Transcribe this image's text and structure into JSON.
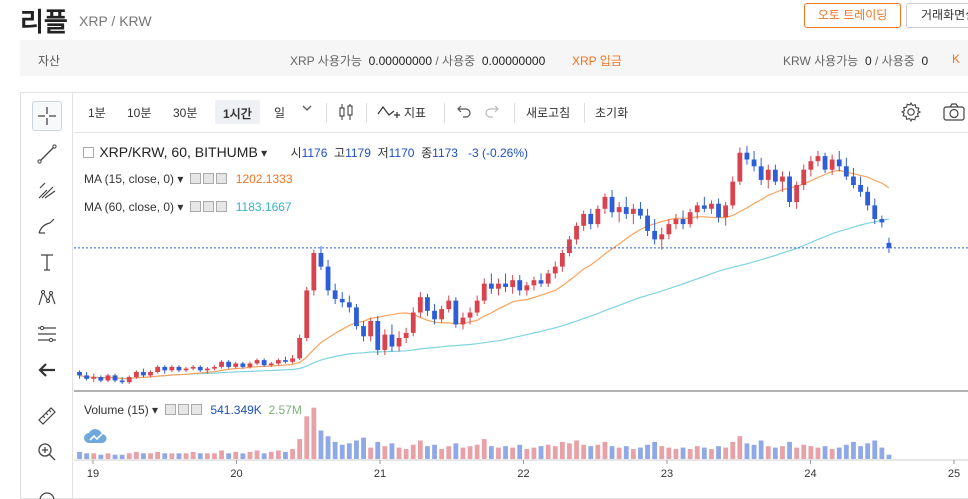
{
  "header": {
    "coin_name": "리플",
    "pair": "XRP / KRW",
    "auto_trading_button": "오토 트레이딩",
    "screen_button": "거래화면설"
  },
  "assets": {
    "label": "자산",
    "xrp_available_label": "XRP 사용가능",
    "xrp_available": "0.00000000",
    "xrp_in_use_label": "/ 사용중",
    "xrp_in_use": "0.00000000",
    "xrp_deposit": "XRP 입금",
    "krw_available_label": "KRW 사용가능",
    "krw_available": "0",
    "krw_in_use_label": "/ 사용중",
    "krw_in_use": "0",
    "krw_deposit": "K"
  },
  "toolbar": {
    "interval_1m": "1분",
    "interval_10m": "10분",
    "interval_30m": "30분",
    "interval_1h": "1시간",
    "interval_day": "일",
    "indicators": "지표",
    "refresh": "새로고침",
    "reset": "초기화"
  },
  "tools": [
    "crosshair-icon",
    "trend-line-icon",
    "pitchfork-icon",
    "brush-icon",
    "text-icon",
    "pattern-icon",
    "fib-icon",
    "back-arrow-icon",
    "ruler-icon",
    "zoom-in-icon"
  ],
  "legend": {
    "symbol": "XRP/KRW, 60, BITHUMB",
    "open_label": "시",
    "open": "1176",
    "high_label": "고",
    "high": "1179",
    "low_label": "저",
    "low": "1170",
    "close_label": "종",
    "close": "1173",
    "change": "-3 (-0.26%)",
    "ma15_label": "MA (15, close, 0)",
    "ma15_value": "1202.1333",
    "ma60_label": "MA (60, close, 0)",
    "ma60_value": "1183.1667",
    "volume_label": "Volume (15)",
    "volume_value": "541.349K",
    "volume_ma_value": "2.57M"
  },
  "colors": {
    "up": "#d9434e",
    "down": "#2d5ed8",
    "ma15": "#f7a35c",
    "ma60": "#7fd4e0",
    "accent": "#f37321"
  },
  "chart_data": {
    "type": "candlestick",
    "x_ticks": [
      "19",
      "20",
      "21",
      "22",
      "23",
      "24",
      "25"
    ],
    "price_range": [
      1090,
      1240
    ],
    "last_price": 1173,
    "candles": [
      [
        1100,
        1101,
        1096,
        1098
      ],
      [
        1098,
        1100,
        1095,
        1096
      ],
      [
        1096,
        1099,
        1094,
        1097
      ],
      [
        1097,
        1098,
        1094,
        1095
      ],
      [
        1095,
        1099,
        1094,
        1098
      ],
      [
        1098,
        1099,
        1094,
        1095
      ],
      [
        1095,
        1097,
        1093,
        1094
      ],
      [
        1094,
        1098,
        1093,
        1097
      ],
      [
        1097,
        1101,
        1096,
        1100
      ],
      [
        1100,
        1102,
        1097,
        1098
      ],
      [
        1098,
        1101,
        1097,
        1100
      ],
      [
        1100,
        1104,
        1099,
        1103
      ],
      [
        1103,
        1104,
        1099,
        1101
      ],
      [
        1101,
        1104,
        1100,
        1103
      ],
      [
        1103,
        1104,
        1100,
        1101
      ],
      [
        1101,
        1103,
        1100,
        1102
      ],
      [
        1102,
        1104,
        1101,
        1103
      ],
      [
        1103,
        1104,
        1100,
        1101
      ],
      [
        1101,
        1103,
        1099,
        1102
      ],
      [
        1102,
        1104,
        1101,
        1103
      ],
      [
        1103,
        1107,
        1102,
        1106
      ],
      [
        1106,
        1107,
        1102,
        1103
      ],
      [
        1103,
        1106,
        1102,
        1105
      ],
      [
        1105,
        1106,
        1102,
        1103
      ],
      [
        1103,
        1106,
        1102,
        1105
      ],
      [
        1105,
        1108,
        1104,
        1107
      ],
      [
        1107,
        1108,
        1103,
        1104
      ],
      [
        1104,
        1106,
        1103,
        1105
      ],
      [
        1105,
        1108,
        1104,
        1107
      ],
      [
        1107,
        1109,
        1105,
        1106
      ],
      [
        1106,
        1110,
        1105,
        1108
      ],
      [
        1108,
        1122,
        1107,
        1120
      ],
      [
        1120,
        1150,
        1118,
        1148
      ],
      [
        1148,
        1172,
        1145,
        1170
      ],
      [
        1170,
        1174,
        1160,
        1162
      ],
      [
        1162,
        1166,
        1145,
        1148
      ],
      [
        1148,
        1152,
        1140,
        1143
      ],
      [
        1143,
        1147,
        1138,
        1141
      ],
      [
        1141,
        1145,
        1135,
        1138
      ],
      [
        1138,
        1140,
        1125,
        1127
      ],
      [
        1127,
        1130,
        1118,
        1121
      ],
      [
        1121,
        1132,
        1118,
        1130
      ],
      [
        1130,
        1133,
        1110,
        1113
      ],
      [
        1113,
        1125,
        1110,
        1122
      ],
      [
        1122,
        1128,
        1112,
        1115
      ],
      [
        1115,
        1124,
        1112,
        1120
      ],
      [
        1120,
        1126,
        1117,
        1123
      ],
      [
        1123,
        1138,
        1121,
        1135
      ],
      [
        1135,
        1147,
        1132,
        1144
      ],
      [
        1144,
        1146,
        1133,
        1136
      ],
      [
        1136,
        1140,
        1128,
        1131
      ],
      [
        1131,
        1139,
        1129,
        1137
      ],
      [
        1137,
        1145,
        1135,
        1142
      ],
      [
        1142,
        1144,
        1126,
        1128
      ],
      [
        1128,
        1135,
        1125,
        1132
      ],
      [
        1132,
        1138,
        1128,
        1135
      ],
      [
        1135,
        1145,
        1133,
        1142
      ],
      [
        1142,
        1155,
        1140,
        1152
      ],
      [
        1152,
        1158,
        1146,
        1149
      ],
      [
        1149,
        1155,
        1145,
        1152
      ],
      [
        1152,
        1158,
        1147,
        1150
      ],
      [
        1150,
        1157,
        1146,
        1154
      ],
      [
        1154,
        1157,
        1145,
        1148
      ],
      [
        1148,
        1153,
        1145,
        1151
      ],
      [
        1151,
        1156,
        1148,
        1154
      ],
      [
        1154,
        1158,
        1150,
        1152
      ],
      [
        1152,
        1160,
        1150,
        1158
      ],
      [
        1158,
        1165,
        1155,
        1162
      ],
      [
        1162,
        1172,
        1159,
        1170
      ],
      [
        1170,
        1180,
        1168,
        1178
      ],
      [
        1178,
        1188,
        1175,
        1186
      ],
      [
        1186,
        1195,
        1183,
        1193
      ],
      [
        1193,
        1196,
        1184,
        1187
      ],
      [
        1187,
        1198,
        1185,
        1196
      ],
      [
        1196,
        1205,
        1193,
        1203
      ],
      [
        1203,
        1207,
        1191,
        1194
      ],
      [
        1194,
        1200,
        1188,
        1197
      ],
      [
        1197,
        1203,
        1190,
        1193
      ],
      [
        1193,
        1199,
        1187,
        1196
      ],
      [
        1196,
        1200,
        1190,
        1192
      ],
      [
        1192,
        1196,
        1180,
        1183
      ],
      [
        1183,
        1190,
        1175,
        1178
      ],
      [
        1178,
        1185,
        1172,
        1181
      ],
      [
        1181,
        1190,
        1178,
        1187
      ],
      [
        1187,
        1193,
        1184,
        1190
      ],
      [
        1190,
        1195,
        1184,
        1187
      ],
      [
        1187,
        1196,
        1185,
        1194
      ],
      [
        1194,
        1200,
        1190,
        1198
      ],
      [
        1198,
        1203,
        1194,
        1196
      ],
      [
        1196,
        1201,
        1193,
        1199
      ],
      [
        1199,
        1202,
        1188,
        1191
      ],
      [
        1191,
        1200,
        1186,
        1198
      ],
      [
        1198,
        1215,
        1196,
        1212
      ],
      [
        1212,
        1232,
        1210,
        1229
      ],
      [
        1229,
        1233,
        1222,
        1225
      ],
      [
        1225,
        1230,
        1218,
        1221
      ],
      [
        1221,
        1226,
        1210,
        1213
      ],
      [
        1213,
        1222,
        1208,
        1219
      ],
      [
        1219,
        1222,
        1210,
        1212
      ],
      [
        1212,
        1218,
        1206,
        1215
      ],
      [
        1215,
        1218,
        1197,
        1200
      ],
      [
        1200,
        1212,
        1196,
        1210
      ],
      [
        1210,
        1222,
        1207,
        1219
      ],
      [
        1219,
        1227,
        1215,
        1224
      ],
      [
        1224,
        1230,
        1221,
        1227
      ],
      [
        1227,
        1229,
        1217,
        1219
      ],
      [
        1219,
        1228,
        1216,
        1225
      ],
      [
        1225,
        1230,
        1218,
        1221
      ],
      [
        1221,
        1226,
        1213,
        1215
      ],
      [
        1215,
        1220,
        1208,
        1210
      ],
      [
        1210,
        1215,
        1203,
        1206
      ],
      [
        1206,
        1209,
        1195,
        1198
      ],
      [
        1198,
        1202,
        1187,
        1190
      ],
      [
        1190,
        1192,
        1185,
        1188
      ],
      [
        1176,
        1179,
        1170,
        1173
      ]
    ],
    "volume": [
      5,
      4,
      4,
      3,
      4,
      3,
      3,
      4,
      5,
      4,
      4,
      5,
      4,
      4,
      4,
      4,
      5,
      4,
      4,
      4,
      6,
      4,
      5,
      4,
      5,
      6,
      4,
      5,
      6,
      5,
      7,
      14,
      30,
      36,
      20,
      16,
      12,
      10,
      11,
      13,
      15,
      8,
      12,
      9,
      11,
      8,
      7,
      10,
      13,
      9,
      10,
      7,
      9,
      11,
      8,
      9,
      10,
      14,
      9,
      8,
      9,
      8,
      10,
      7,
      8,
      9,
      10,
      9,
      12,
      11,
      13,
      10,
      9,
      10,
      12,
      9,
      8,
      9,
      7,
      8,
      10,
      12,
      9,
      8,
      7,
      8,
      7,
      9,
      8,
      7,
      9,
      8,
      12,
      16,
      11,
      10,
      13,
      9,
      8,
      9,
      12,
      8,
      10,
      9,
      8,
      9,
      7,
      8,
      10,
      12,
      9,
      11,
      13,
      8,
      3
    ],
    "volume_range": [
      0,
      40
    ]
  }
}
